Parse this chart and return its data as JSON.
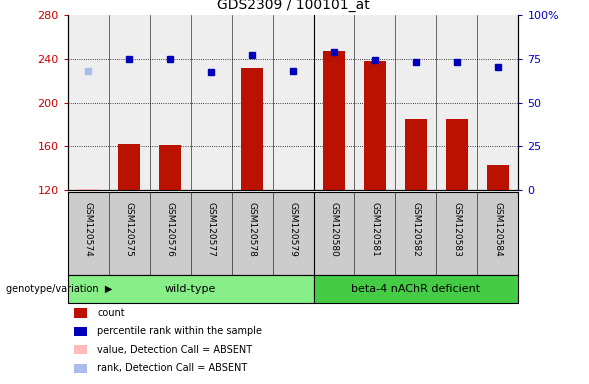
{
  "title": "GDS2309 / 100101_at",
  "samples": [
    "GSM120574",
    "GSM120575",
    "GSM120576",
    "GSM120577",
    "GSM120578",
    "GSM120579",
    "GSM120580",
    "GSM120581",
    "GSM120582",
    "GSM120583",
    "GSM120584"
  ],
  "bar_heights": [
    121,
    162,
    161,
    120,
    232,
    120,
    247,
    238,
    185,
    185,
    143
  ],
  "bar_absent": [
    true,
    false,
    false,
    false,
    false,
    false,
    false,
    false,
    false,
    false,
    false
  ],
  "percentile_ranks": [
    229,
    240,
    240,
    228,
    244,
    229,
    246,
    239,
    237,
    237,
    233
  ],
  "percentile_absent": [
    true,
    false,
    false,
    false,
    false,
    false,
    false,
    false,
    false,
    false,
    false
  ],
  "ylim_left": [
    120,
    280
  ],
  "ylim_right": [
    0,
    100
  ],
  "yticks_left": [
    120,
    160,
    200,
    240,
    280
  ],
  "yticks_right": [
    0,
    25,
    50,
    75,
    100
  ],
  "ytick_labels_right": [
    "0",
    "25",
    "50",
    "75",
    "100%"
  ],
  "bar_color": "#bb1100",
  "bar_absent_color": "#ffbbbb",
  "dot_color": "#0000bb",
  "dot_absent_color": "#aabbee",
  "grid_color": "#000000",
  "sample_bg": "#cccccc",
  "wildtype_color": "#88ee88",
  "beta4_color": "#44cc44",
  "genotype_label": "genotype/variation",
  "wildtype_label": "wild-type",
  "beta4_label": "beta-4 nAChR deficient",
  "legend_items": [
    {
      "label": "count",
      "color": "#bb1100"
    },
    {
      "label": "percentile rank within the sample",
      "color": "#0000bb"
    },
    {
      "label": "value, Detection Call = ABSENT",
      "color": "#ffbbbb"
    },
    {
      "label": "rank, Detection Call = ABSENT",
      "color": "#aabbee"
    }
  ],
  "fig_bg": "#ffffff",
  "left_axis_color": "#cc0000",
  "right_axis_color": "#0000cc",
  "n_wildtype": 6,
  "n_total": 11
}
